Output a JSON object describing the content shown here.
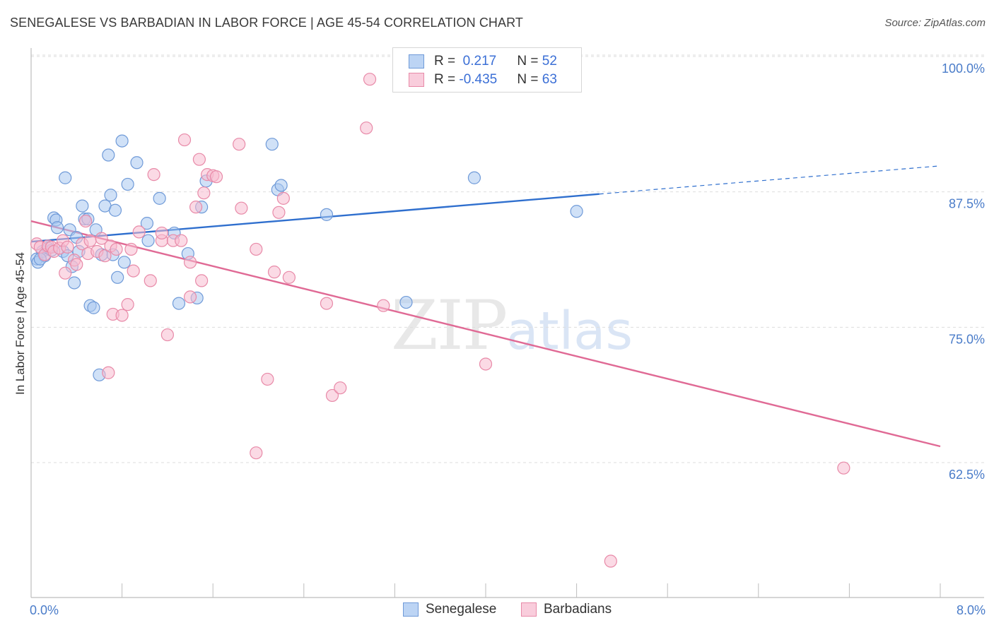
{
  "title": "SENEGALESE VS BARBADIAN IN LABOR FORCE | AGE 45-54 CORRELATION CHART",
  "source": "Source: ZipAtlas.com",
  "watermark": {
    "zip": "ZIP",
    "atlas": "atlas"
  },
  "legend": {
    "rows": [
      {
        "r_label": "R = ",
        "r_value": " 0.217",
        "n_label": "N = ",
        "n_value": "52"
      },
      {
        "r_label": "R = ",
        "r_value": "-0.435",
        "n_label": "N = ",
        "n_value": "63"
      }
    ]
  },
  "colors": {
    "senegalese_fill": "#a9c8f0",
    "senegalese_stroke": "#6f9ad8",
    "senegalese_line": "#2f6fce",
    "barbadian_fill": "#f7bcd0",
    "barbadian_stroke": "#e88aa8",
    "barbadian_line": "#e06a95",
    "grid": "#dddddd",
    "tick_text": "#4a7cc9"
  },
  "chart_data": {
    "type": "scatter",
    "xlabel": "",
    "ylabel": "In Labor Force | Age 45-54",
    "xlim": [
      0,
      8
    ],
    "ylim": [
      52,
      102
    ],
    "x_tick_labels": [
      "0.0%",
      "8.0%"
    ],
    "y_ticks": [
      62.5,
      75.0,
      87.5,
      100.0
    ],
    "y_tick_labels": [
      "62.5%",
      "75.0%",
      "87.5%",
      "100.0%"
    ],
    "grid": true,
    "legend_position": "bottom",
    "series": [
      {
        "name": "Senegalese",
        "trend": {
          "x0": 0.0,
          "y0": 82.9,
          "x1": 5.0,
          "y1": 87.3,
          "dashed_to_x": 8.0,
          "dashed_to_y": 89.9
        },
        "points": [
          [
            0.05,
            81.3
          ],
          [
            0.06,
            81.0
          ],
          [
            0.1,
            82.0
          ],
          [
            0.12,
            81.6
          ],
          [
            0.15,
            82.3
          ],
          [
            0.18,
            82.1
          ],
          [
            0.2,
            85.1
          ],
          [
            0.22,
            84.9
          ],
          [
            0.23,
            84.2
          ],
          [
            0.28,
            82.0
          ],
          [
            0.3,
            88.8
          ],
          [
            0.32,
            81.6
          ],
          [
            0.34,
            84.0
          ],
          [
            0.36,
            80.6
          ],
          [
            0.38,
            79.1
          ],
          [
            0.4,
            83.3
          ],
          [
            0.42,
            82.0
          ],
          [
            0.45,
            86.2
          ],
          [
            0.47,
            85.0
          ],
          [
            0.5,
            85.0
          ],
          [
            0.52,
            77.0
          ],
          [
            0.55,
            76.8
          ],
          [
            0.57,
            84.0
          ],
          [
            0.6,
            70.6
          ],
          [
            0.62,
            81.7
          ],
          [
            0.65,
            86.2
          ],
          [
            0.68,
            90.9
          ],
          [
            0.7,
            87.2
          ],
          [
            0.72,
            81.7
          ],
          [
            0.74,
            85.8
          ],
          [
            0.76,
            79.6
          ],
          [
            0.8,
            92.2
          ],
          [
            0.82,
            81.0
          ],
          [
            0.85,
            88.2
          ],
          [
            0.93,
            90.2
          ],
          [
            1.02,
            84.6
          ],
          [
            1.03,
            83.0
          ],
          [
            1.13,
            86.9
          ],
          [
            1.26,
            83.7
          ],
          [
            1.3,
            77.2
          ],
          [
            1.38,
            81.8
          ],
          [
            1.46,
            77.7
          ],
          [
            1.5,
            86.1
          ],
          [
            1.54,
            88.5
          ],
          [
            2.12,
            91.9
          ],
          [
            2.17,
            87.7
          ],
          [
            2.2,
            88.1
          ],
          [
            2.6,
            85.4
          ],
          [
            3.3,
            77.3
          ],
          [
            3.9,
            88.8
          ],
          [
            4.8,
            85.7
          ],
          [
            0.08,
            81.3
          ]
        ]
      },
      {
        "name": "Barbadians",
        "trend": {
          "x0": 0.0,
          "y0": 84.8,
          "x1": 8.0,
          "y1": 64.0
        },
        "points": [
          [
            0.05,
            82.7
          ],
          [
            0.08,
            82.4
          ],
          [
            0.12,
            81.7
          ],
          [
            0.15,
            82.5
          ],
          [
            0.18,
            82.4
          ],
          [
            0.2,
            82.0
          ],
          [
            0.25,
            82.3
          ],
          [
            0.28,
            83.0
          ],
          [
            0.3,
            80.0
          ],
          [
            0.32,
            82.4
          ],
          [
            0.38,
            81.2
          ],
          [
            0.4,
            80.8
          ],
          [
            0.45,
            82.7
          ],
          [
            0.48,
            84.8
          ],
          [
            0.5,
            81.8
          ],
          [
            0.52,
            83.0
          ],
          [
            0.58,
            82.0
          ],
          [
            0.62,
            83.2
          ],
          [
            0.65,
            81.6
          ],
          [
            0.68,
            70.8
          ],
          [
            0.7,
            82.5
          ],
          [
            0.72,
            76.2
          ],
          [
            0.75,
            82.2
          ],
          [
            0.8,
            76.1
          ],
          [
            0.85,
            77.1
          ],
          [
            0.88,
            82.2
          ],
          [
            0.9,
            80.2
          ],
          [
            0.95,
            83.8
          ],
          [
            1.05,
            79.3
          ],
          [
            1.08,
            89.1
          ],
          [
            1.15,
            83.0
          ],
          [
            1.15,
            83.7
          ],
          [
            1.2,
            74.3
          ],
          [
            1.25,
            83.0
          ],
          [
            1.32,
            83.0
          ],
          [
            1.35,
            92.3
          ],
          [
            1.4,
            77.8
          ],
          [
            1.45,
            86.1
          ],
          [
            1.5,
            79.3
          ],
          [
            1.52,
            87.4
          ],
          [
            1.55,
            89.1
          ],
          [
            1.6,
            89.0
          ],
          [
            1.63,
            88.9
          ],
          [
            1.48,
            90.5
          ],
          [
            1.4,
            81.0
          ],
          [
            1.85,
            86.0
          ],
          [
            1.83,
            91.9
          ],
          [
            1.98,
            63.4
          ],
          [
            1.98,
            82.2
          ],
          [
            2.08,
            70.2
          ],
          [
            2.14,
            80.1
          ],
          [
            2.18,
            85.6
          ],
          [
            2.22,
            86.9
          ],
          [
            2.27,
            79.6
          ],
          [
            2.6,
            77.2
          ],
          [
            2.65,
            68.7
          ],
          [
            2.72,
            69.4
          ],
          [
            2.95,
            93.4
          ],
          [
            2.98,
            97.9
          ],
          [
            3.1,
            77.0
          ],
          [
            4.0,
            71.6
          ],
          [
            5.1,
            53.4
          ],
          [
            7.15,
            62.0
          ]
        ]
      }
    ]
  }
}
